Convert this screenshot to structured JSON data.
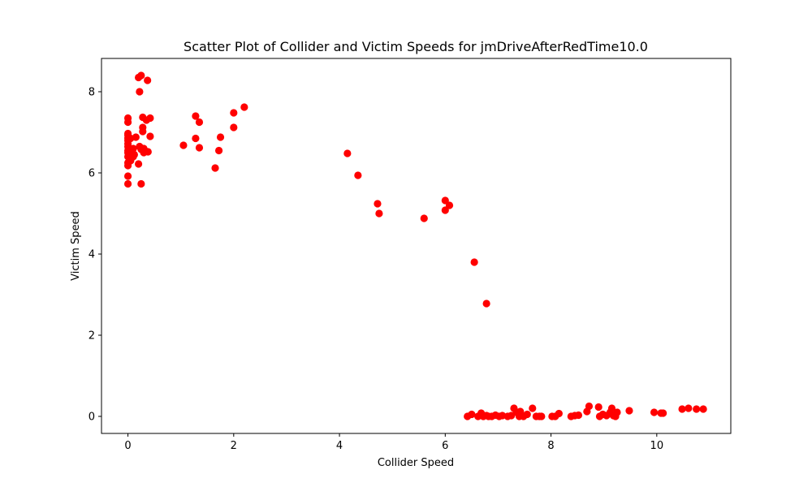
{
  "chart_data": {
    "type": "scatter",
    "title": "Scatter Plot of Collider and Victim Speeds for jmDriveAfterRedTime10.0",
    "xlabel": "Collider Speed",
    "ylabel": "Victim Speed",
    "xlim": [
      -0.5,
      11.4
    ],
    "ylim": [
      -0.42,
      8.82
    ],
    "xticks": [
      0,
      2,
      4,
      6,
      8,
      10
    ],
    "yticks": [
      0,
      2,
      4,
      6,
      8
    ],
    "grid": false,
    "legend": "none",
    "marker_color": "#ff0000",
    "series": [
      {
        "points": [
          [
            0.0,
            5.73
          ],
          [
            0.0,
            5.92
          ],
          [
            0.0,
            6.18
          ],
          [
            0.0,
            6.25
          ],
          [
            0.0,
            6.4
          ],
          [
            0.0,
            6.5
          ],
          [
            0.0,
            6.55
          ],
          [
            0.0,
            6.65
          ],
          [
            0.0,
            6.72
          ],
          [
            0.0,
            6.8
          ],
          [
            0.0,
            6.86
          ],
          [
            0.0,
            6.93
          ],
          [
            0.0,
            6.97
          ],
          [
            0.0,
            7.25
          ],
          [
            0.0,
            7.35
          ],
          [
            0.05,
            6.3
          ],
          [
            0.05,
            6.85
          ],
          [
            0.08,
            6.52
          ],
          [
            0.1,
            6.4
          ],
          [
            0.1,
            6.6
          ],
          [
            0.12,
            6.45
          ],
          [
            0.15,
            6.88
          ],
          [
            0.2,
            6.22
          ],
          [
            0.2,
            8.35
          ],
          [
            0.22,
            8.0
          ],
          [
            0.22,
            6.65
          ],
          [
            0.25,
            8.4
          ],
          [
            0.25,
            5.73
          ],
          [
            0.25,
            6.58
          ],
          [
            0.28,
            7.02
          ],
          [
            0.28,
            7.12
          ],
          [
            0.28,
            7.37
          ],
          [
            0.3,
            6.6
          ],
          [
            0.3,
            6.5
          ],
          [
            0.32,
            6.55
          ],
          [
            0.35,
            7.3
          ],
          [
            0.37,
            8.28
          ],
          [
            0.38,
            6.52
          ],
          [
            0.42,
            7.35
          ],
          [
            0.42,
            6.9
          ],
          [
            1.05,
            6.68
          ],
          [
            1.28,
            7.4
          ],
          [
            1.28,
            6.85
          ],
          [
            1.35,
            7.25
          ],
          [
            1.35,
            6.62
          ],
          [
            1.65,
            6.12
          ],
          [
            1.72,
            6.55
          ],
          [
            1.75,
            6.88
          ],
          [
            2.0,
            7.48
          ],
          [
            2.0,
            7.12
          ],
          [
            2.2,
            7.62
          ],
          [
            4.15,
            6.48
          ],
          [
            4.35,
            5.94
          ],
          [
            4.72,
            5.24
          ],
          [
            4.75,
            5.0
          ],
          [
            5.6,
            4.88
          ],
          [
            6.0,
            5.32
          ],
          [
            6.0,
            5.08
          ],
          [
            6.08,
            5.2
          ],
          [
            6.55,
            3.8
          ],
          [
            6.78,
            2.78
          ],
          [
            6.42,
            0.0
          ],
          [
            6.5,
            0.05
          ],
          [
            6.62,
            0.0
          ],
          [
            6.68,
            0.08
          ],
          [
            6.72,
            0.0
          ],
          [
            6.78,
            0.02
          ],
          [
            6.82,
            0.0
          ],
          [
            6.88,
            0.0
          ],
          [
            6.95,
            0.03
          ],
          [
            7.02,
            0.0
          ],
          [
            7.08,
            0.02
          ],
          [
            7.18,
            0.0
          ],
          [
            7.25,
            0.02
          ],
          [
            7.3,
            0.2
          ],
          [
            7.35,
            0.1
          ],
          [
            7.4,
            0.0
          ],
          [
            7.42,
            0.12
          ],
          [
            7.48,
            0.0
          ],
          [
            7.55,
            0.05
          ],
          [
            7.65,
            0.2
          ],
          [
            7.72,
            0.0
          ],
          [
            7.78,
            0.0
          ],
          [
            7.82,
            0.0
          ],
          [
            8.02,
            0.0
          ],
          [
            8.08,
            0.0
          ],
          [
            8.15,
            0.07
          ],
          [
            8.38,
            0.0
          ],
          [
            8.45,
            0.02
          ],
          [
            8.52,
            0.03
          ],
          [
            8.68,
            0.12
          ],
          [
            8.72,
            0.25
          ],
          [
            8.9,
            0.23
          ],
          [
            8.92,
            0.0
          ],
          [
            8.98,
            0.05
          ],
          [
            9.05,
            0.02
          ],
          [
            9.12,
            0.1
          ],
          [
            9.15,
            0.2
          ],
          [
            9.18,
            0.02
          ],
          [
            9.22,
            0.0
          ],
          [
            9.25,
            0.1
          ],
          [
            9.48,
            0.14
          ],
          [
            9.95,
            0.1
          ],
          [
            10.08,
            0.08
          ],
          [
            10.12,
            0.08
          ],
          [
            10.48,
            0.18
          ],
          [
            10.6,
            0.2
          ],
          [
            10.75,
            0.18
          ],
          [
            10.88,
            0.18
          ]
        ]
      }
    ]
  }
}
